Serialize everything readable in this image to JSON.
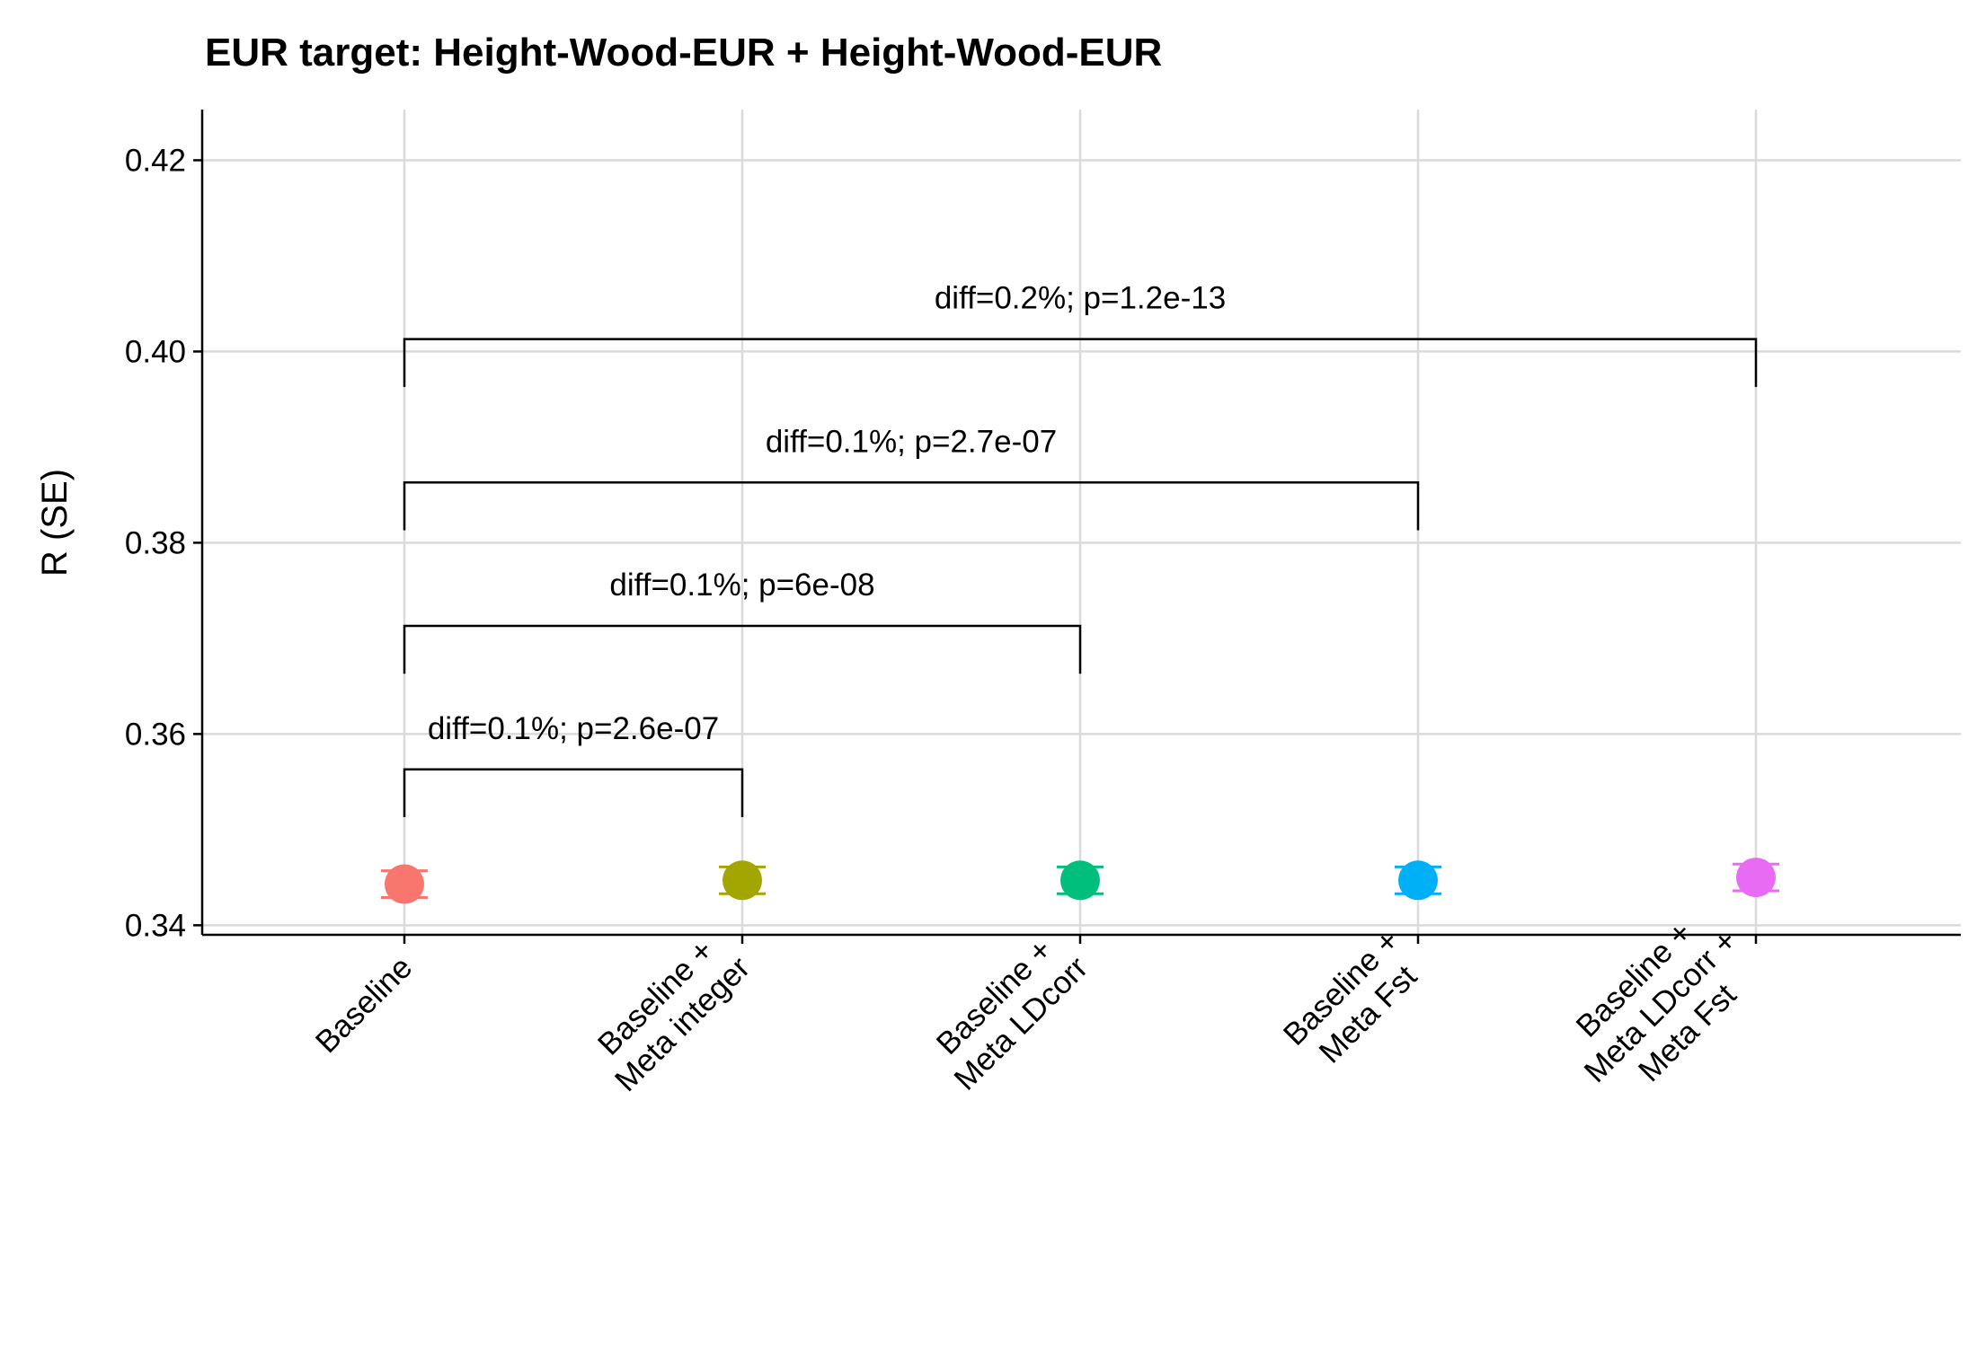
{
  "chart_data": {
    "type": "scatter",
    "title": "EUR target: Height-Wood-EUR + Height-Wood-EUR",
    "ylabel": "R (SE)",
    "xlabel": "",
    "ylim": [
      0.339,
      0.4253
    ],
    "yticks": [
      0.34,
      0.36,
      0.38,
      0.4,
      0.42
    ],
    "ytick_labels": [
      "0.34",
      "0.36",
      "0.38",
      "0.40",
      "0.42"
    ],
    "grid": true,
    "categories": [
      [
        "Baseline"
      ],
      [
        "Baseline +",
        "Meta integer"
      ],
      [
        "Baseline +",
        "Meta LDcorr"
      ],
      [
        "Baseline +",
        "Meta Fst"
      ],
      [
        "Baseline +",
        "Meta LDcorr +",
        "Meta Fst"
      ]
    ],
    "points": [
      {
        "value": 0.3443,
        "se_low": 0.3429,
        "se_high": 0.3457,
        "color": "#F8766D"
      },
      {
        "value": 0.3447,
        "se_low": 0.3433,
        "se_high": 0.3461,
        "color": "#A3A500"
      },
      {
        "value": 0.3447,
        "se_low": 0.3433,
        "se_high": 0.3461,
        "color": "#00BF7D"
      },
      {
        "value": 0.3447,
        "se_low": 0.3433,
        "se_high": 0.3461,
        "color": "#00B0F6"
      },
      {
        "value": 0.345,
        "se_low": 0.3436,
        "se_high": 0.3464,
        "color": "#E76BF3"
      }
    ],
    "brackets": [
      {
        "from": 0,
        "to": 1,
        "y": 0.3563,
        "left_tip": 0.3513,
        "right_tip": 0.3513,
        "label": "diff=0.1%; p=2.6e-07"
      },
      {
        "from": 0,
        "to": 2,
        "y": 0.3713,
        "left_tip": 0.3663,
        "right_tip": 0.3663,
        "label": "diff=0.1%; p=6e-08"
      },
      {
        "from": 0,
        "to": 3,
        "y": 0.3863,
        "left_tip": 0.3813,
        "right_tip": 0.3813,
        "label": "diff=0.1%; p=2.7e-07"
      },
      {
        "from": 0,
        "to": 4,
        "y": 0.4013,
        "left_tip": 0.3963,
        "right_tip": 0.3963,
        "label": "diff=0.2%; p=1.2e-13"
      }
    ]
  }
}
